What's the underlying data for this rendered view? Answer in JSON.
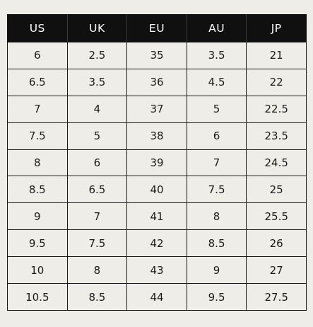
{
  "table": {
    "headers": [
      "US",
      "UK",
      "EU",
      "AU",
      "JP"
    ],
    "rows": [
      [
        "6",
        "2.5",
        "35",
        "3.5",
        "21"
      ],
      [
        "6.5",
        "3.5",
        "36",
        "4.5",
        "22"
      ],
      [
        "7",
        "4",
        "37",
        "5",
        "22.5"
      ],
      [
        "7.5",
        "5",
        "38",
        "6",
        "23.5"
      ],
      [
        "8",
        "6",
        "39",
        "7",
        "24.5"
      ],
      [
        "8.5",
        "6.5",
        "40",
        "7.5",
        "25"
      ],
      [
        "9",
        "7",
        "41",
        "8",
        "25.5"
      ],
      [
        "9.5",
        "7.5",
        "42",
        "8.5",
        "26"
      ],
      [
        "10",
        "8",
        "43",
        "9",
        "27"
      ],
      [
        "10.5",
        "8.5",
        "44",
        "9.5",
        "27.5"
      ]
    ]
  },
  "colors": {
    "header_background": "#101010",
    "header_text": "#ffffff",
    "body_background": "#efede8",
    "border": "#1a1a1a"
  }
}
